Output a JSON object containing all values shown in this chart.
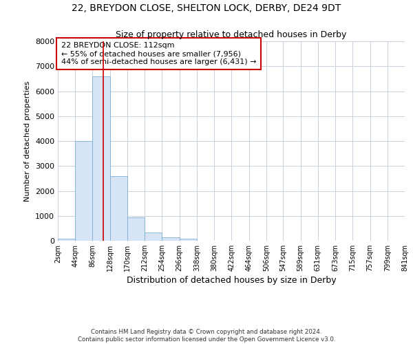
{
  "title1": "22, BREYDON CLOSE, SHELTON LOCK, DERBY, DE24 9DT",
  "title2": "Size of property relative to detached houses in Derby",
  "xlabel": "Distribution of detached houses by size in Derby",
  "ylabel": "Number of detached properties",
  "footnote": "Contains HM Land Registry data © Crown copyright and database right 2024.\nContains public sector information licensed under the Open Government Licence v3.0.",
  "bar_color": "#d6e4f5",
  "bar_edge_color": "#7bafd4",
  "annotation_box_color": "#ffffff",
  "annotation_box_edge": "#cc0000",
  "redline_color": "#cc0000",
  "grid_color": "#c8d0dc",
  "bin_edges": [
    2,
    44,
    86,
    128,
    170,
    212,
    254,
    296,
    338,
    380,
    422,
    464,
    506,
    547,
    589,
    631,
    673,
    715,
    757,
    799,
    841
  ],
  "bar_heights": [
    75,
    4000,
    6600,
    2600,
    950,
    320,
    150,
    75,
    0,
    0,
    0,
    0,
    0,
    0,
    0,
    0,
    0,
    0,
    0,
    0
  ],
  "property_size": 112,
  "annotation_title": "22 BREYDON CLOSE: 112sqm",
  "annotation_line1": "← 55% of detached houses are smaller (7,956)",
  "annotation_line2": "44% of semi-detached houses are larger (6,431) →",
  "ylim": [
    0,
    8000
  ],
  "yticks": [
    0,
    1000,
    2000,
    3000,
    4000,
    5000,
    6000,
    7000,
    8000
  ],
  "tick_labels": [
    "2sqm",
    "44sqm",
    "86sqm",
    "128sqm",
    "170sqm",
    "212sqm",
    "254sqm",
    "296sqm",
    "338sqm",
    "380sqm",
    "422sqm",
    "464sqm",
    "506sqm",
    "547sqm",
    "589sqm",
    "631sqm",
    "673sqm",
    "715sqm",
    "757sqm",
    "799sqm",
    "841sqm"
  ]
}
